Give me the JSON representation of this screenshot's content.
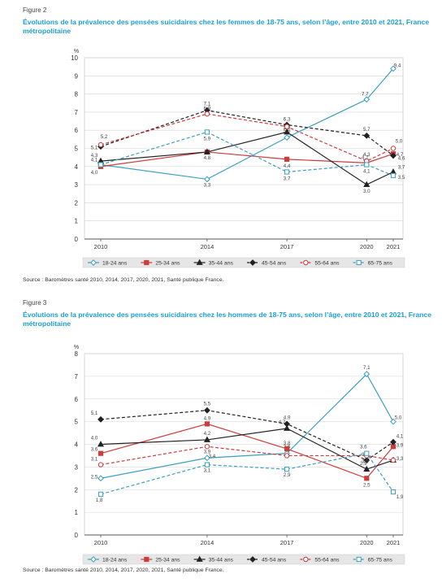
{
  "chart_data": [
    {
      "type": "line",
      "figure_label": "Figure 2",
      "title": "Évolutions de la prévalence des pensées suicidaires chez les femmes de 18-75 ans, selon l’âge, entre 2010 et 2021, France métropolitaine",
      "ylabel": "%",
      "ylim": [
        0,
        10
      ],
      "yticks": [
        "0",
        "1",
        "2",
        "3",
        "4",
        "5",
        "6",
        "7",
        "8",
        "9",
        "10"
      ],
      "x": [
        2010,
        2014,
        2017,
        2020,
        2021
      ],
      "xtick_labels": [
        "2010",
        "2014",
        "2017",
        "2020",
        "2021"
      ],
      "grid": true,
      "legend_position": "bottom",
      "source": "Source : Baromètres santé 2010, 2014, 2017, 2020, 2021, Santé publique France.",
      "series": [
        {
          "name": "18-24 ans",
          "values": [
            4.1,
            3.3,
            5.6,
            7.7,
            9.4
          ],
          "labels": [
            "4,1",
            "3,3",
            "5,6",
            "7,7",
            "9,4"
          ],
          "color": "#3a9fc0",
          "dash": "solid",
          "marker": "diamond-open"
        },
        {
          "name": "25-34 ans",
          "values": [
            4.0,
            4.8,
            4.4,
            4.2,
            4.7
          ],
          "labels": [
            "4,0",
            "4,8",
            "4,4",
            "4,2",
            "4,7"
          ],
          "color": "#cf3b3b",
          "dash": "solid",
          "marker": "square"
        },
        {
          "name": "35-44 ans",
          "values": [
            4.3,
            4.8,
            5.9,
            3.0,
            3.7
          ],
          "labels": [
            "4,3",
            "",
            "5,9",
            "3,0",
            "3,7"
          ],
          "color": "#222222",
          "dash": "solid",
          "marker": "triangle"
        },
        {
          "name": "45-54 ans",
          "values": [
            5.1,
            7.1,
            6.3,
            5.7,
            4.6
          ],
          "labels": [
            "5,1",
            "7,1",
            "6,3",
            "5,7",
            "4,6"
          ],
          "color": "#222222",
          "dash": "dashed",
          "marker": "diamond"
        },
        {
          "name": "55-64 ans",
          "values": [
            5.2,
            6.9,
            6.2,
            4.3,
            5.0
          ],
          "labels": [
            "5,2",
            "6,9",
            "",
            "4,3",
            "5,0"
          ],
          "color": "#cf3b3b",
          "dash": "dashed",
          "marker": "circle-open"
        },
        {
          "name": "65-75 ans",
          "values": [
            4.1,
            5.9,
            3.7,
            4.1,
            3.5
          ],
          "labels": [
            "",
            "5,9",
            "3,7",
            "4,1",
            "3,5"
          ],
          "color": "#3a9fc0",
          "dash": "dashed",
          "marker": "square-open"
        }
      ]
    },
    {
      "type": "line",
      "figure_label": "Figure 3",
      "title": "Évolutions de la prévalence des pensées suicidaires chez les hommes de 18-75 ans, selon l’âge, entre 2010 et 2021, France métropolitaine",
      "ylabel": "%",
      "ylim": [
        0,
        8
      ],
      "yticks": [
        "0",
        "1",
        "2",
        "3",
        "4",
        "5",
        "6",
        "7",
        "8"
      ],
      "x": [
        2010,
        2014,
        2017,
        2020,
        2021
      ],
      "xtick_labels": [
        "2010",
        "2014",
        "2017",
        "2020",
        "2021"
      ],
      "grid": true,
      "legend_position": "bottom",
      "source": "Source : Baromètres santé 2010, 2014, 2017, 2020, 2021, Santé publique France.",
      "series": [
        {
          "name": "18-24 ans",
          "values": [
            2.5,
            3.4,
            3.6,
            7.1,
            5.0
          ],
          "labels": [
            "2,5",
            "3,4",
            "3,6",
            "7,1",
            "5,0"
          ],
          "color": "#3a9fc0",
          "dash": "solid",
          "marker": "diamond-open"
        },
        {
          "name": "25-34 ans",
          "values": [
            3.6,
            4.9,
            3.8,
            2.5,
            3.9
          ],
          "labels": [
            "3,6",
            "4,9",
            "3,8",
            "2,5",
            "3,9"
          ],
          "color": "#cf3b3b",
          "dash": "solid",
          "marker": "square"
        },
        {
          "name": "35-44 ans",
          "values": [
            4.0,
            4.2,
            4.7,
            2.9,
            3.3
          ],
          "labels": [
            "4,0",
            "4,2",
            "4,7",
            "2,9",
            "3,3"
          ],
          "color": "#222222",
          "dash": "solid",
          "marker": "triangle"
        },
        {
          "name": "45-54 ans",
          "values": [
            5.1,
            5.5,
            4.9,
            3.3,
            4.1
          ],
          "labels": [
            "5,1",
            "5,5",
            "4,9",
            "3,3",
            "4,1"
          ],
          "color": "#222222",
          "dash": "dashed",
          "marker": "diamond"
        },
        {
          "name": "55-64 ans",
          "values": [
            3.1,
            3.9,
            3.5,
            3.5,
            3.3
          ],
          "labels": [
            "3,1",
            "3,9",
            "",
            "3,5",
            ""
          ],
          "color": "#cf3b3b",
          "dash": "dashed",
          "marker": "circle-open"
        },
        {
          "name": "65-75 ans",
          "values": [
            1.8,
            3.1,
            2.9,
            3.6,
            1.9
          ],
          "labels": [
            "1,8",
            "3,1",
            "2,9",
            "3,6",
            "1,9"
          ],
          "color": "#3a9fc0",
          "dash": "dashed",
          "marker": "square-open"
        }
      ]
    }
  ]
}
